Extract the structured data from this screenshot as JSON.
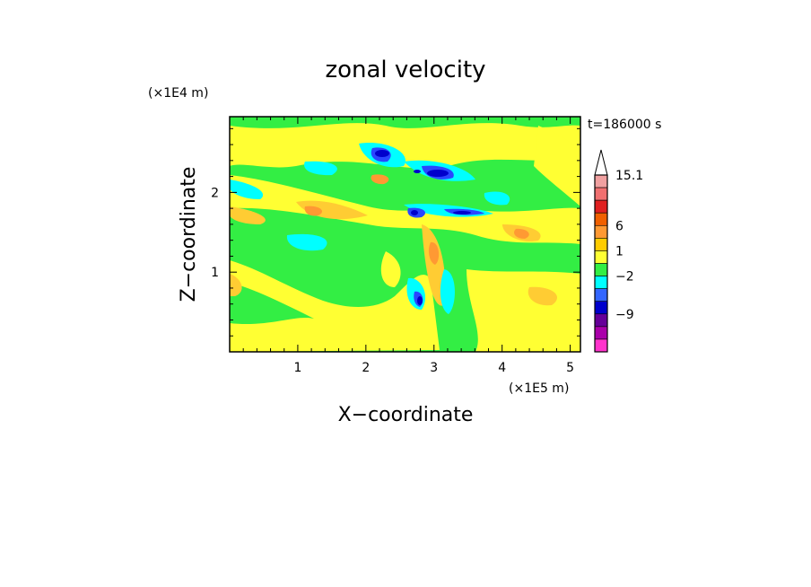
{
  "chart_data": {
    "type": "heatmap",
    "title": "zonal velocity",
    "xlabel": "X−coordinate",
    "ylabel": "Z−coordinate",
    "x_unit": "(×1E5 m)",
    "y_unit": "(×1E4 m)",
    "time_label": "t=186000 s",
    "xlim": [
      0,
      5.15
    ],
    "ylim": [
      0,
      2.95
    ],
    "x_ticks": [
      "1",
      "2",
      "3",
      "4",
      "5"
    ],
    "y_ticks": [
      "1",
      "2"
    ],
    "colorbar": {
      "labels": [
        "15.1",
        "6",
        "1",
        "−2",
        "−9"
      ],
      "colors": [
        "#f0a0a0",
        "#f07070",
        "#e02020",
        "#f06000",
        "#ff9933",
        "#ffcc00",
        "#ffff33",
        "#33ee44",
        "#00ffff",
        "#3366ff",
        "#0000cc",
        "#660099",
        "#aa00aa",
        "#ff33cc"
      ],
      "levels": [
        15.1,
        12,
        9,
        6,
        3,
        1,
        0,
        -2,
        -3,
        -6,
        -9,
        -12,
        -15
      ],
      "max_arrow_color": "#ffffff"
    },
    "field_colors": {
      "background": "#33ee44",
      "yellow": "#ffff33",
      "light_orange": "#ffcc33",
      "orange": "#ff9933",
      "cyan": "#00ffff",
      "blue": "#2a46ff",
      "dark_blue": "#0000cc"
    }
  }
}
